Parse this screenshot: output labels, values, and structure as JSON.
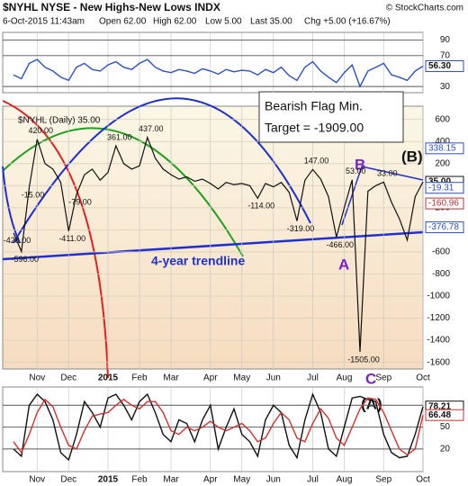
{
  "header": {
    "title": "$NYHL NYSE - New Highs-New Lows INDX",
    "copyright": "© StockCharts.com",
    "date": "6-Oct-2015 11:43am",
    "open": "Open 62.00",
    "high": "High 62.00",
    "low": "Low 5.00",
    "last": "Last 35.00",
    "change": "Chg +5.00 (+16.67%)"
  },
  "chart_data": [
    {
      "type": "line",
      "ylim": [
        22,
        100
      ],
      "yticks": [
        30,
        70,
        90
      ],
      "grid": true,
      "series": [
        {
          "color": "#2a4fc8",
          "values": [
            45,
            40,
            60,
            65,
            55,
            50,
            42,
            38,
            55,
            60,
            52,
            50,
            58,
            62,
            55,
            52,
            60,
            65,
            55,
            50,
            48,
            52,
            50,
            47,
            53,
            50,
            46,
            52,
            49,
            51,
            50,
            45,
            52,
            48,
            55,
            44,
            38,
            55,
            62,
            50,
            42,
            35,
            48,
            58,
            30,
            50,
            55,
            60,
            45,
            42,
            38,
            50,
            56.3
          ],
          "value_labels": [
            null,
            null,
            null,
            null,
            null,
            null,
            null,
            null,
            null,
            null,
            null,
            null,
            null,
            null,
            null,
            null,
            null,
            null,
            null,
            null,
            null,
            null,
            null,
            null,
            null,
            null,
            null,
            null,
            null,
            null,
            null,
            null,
            null,
            null,
            null,
            null,
            null,
            null,
            null,
            null,
            null,
            null,
            null,
            null,
            null,
            null,
            null,
            null,
            null,
            null,
            null,
            null,
            "56.30"
          ]
        }
      ]
    },
    {
      "type": "line",
      "ylim": [
        -1660,
        720
      ],
      "yticks": [
        600,
        400,
        200,
        0,
        -200,
        -400,
        -600,
        -800,
        -1000,
        -1200,
        -1400,
        -1600
      ],
      "grid": true,
      "categories": [
        null,
        null,
        null,
        "Nov",
        null,
        null,
        null,
        "Dec",
        null,
        null,
        null,
        null,
        "2015",
        null,
        null,
        null,
        "Feb",
        null,
        null,
        null,
        "Mar",
        null,
        null,
        null,
        null,
        "Apr",
        null,
        null,
        null,
        "May",
        null,
        null,
        null,
        "Jun",
        null,
        null,
        null,
        null,
        "Jul",
        null,
        null,
        null,
        "Aug",
        null,
        null,
        null,
        null,
        "Sep",
        null,
        null,
        null,
        null,
        "Oct"
      ],
      "series": [
        {
          "name": "$NYHL (Daily) 35.00",
          "color": "#111111",
          "values": [
            -428,
            -596,
            -15,
            420,
            200,
            150,
            30,
            -411,
            -79,
            100,
            150,
            50,
            120,
            361,
            200,
            150,
            180,
            437,
            250,
            150,
            100,
            60,
            80,
            40,
            60,
            20,
            -30,
            30,
            10,
            20,
            0,
            -114,
            20,
            -10,
            30,
            -60,
            -319,
            50,
            147,
            60,
            -100,
            -466,
            -200,
            53,
            -1505,
            -50,
            0,
            33,
            -150,
            -300,
            -492,
            -100,
            35
          ],
          "value_labels": [
            "-428.00",
            "-596.00",
            "-15.00",
            "420.00",
            null,
            null,
            null,
            "-411.00",
            "-79.00",
            null,
            null,
            null,
            null,
            "361.00",
            null,
            null,
            null,
            "437.00",
            null,
            null,
            null,
            null,
            null,
            null,
            null,
            null,
            null,
            null,
            null,
            null,
            null,
            "-114.00",
            null,
            null,
            null,
            null,
            "-319.00",
            null,
            "147.00",
            null,
            null,
            "-466.00",
            null,
            "53.00",
            "-1505.00",
            null,
            null,
            "33.00",
            null,
            null,
            null,
            null,
            "35.00"
          ]
        }
      ],
      "indicator_values": [
        338.15,
        -19.31,
        -160.96,
        -376.78
      ],
      "indicator_colors": [
        "#2a4fc8",
        "#2a4fc8",
        "#c03030",
        "#2a4fc8"
      ],
      "annotations": {
        "flag_title": "Bearish Flag Min.",
        "flag_target": "Target = -1909.00",
        "trendline": "4-year trendline",
        "wave_a": "A",
        "wave_b": "B",
        "wave_c": "C",
        "wave_pa": "(A)",
        "wave_pb": "(B)"
      }
    },
    {
      "type": "line",
      "ylim": [
        -11,
        105
      ],
      "yticks": [
        20,
        50,
        80
      ],
      "grid": true,
      "series": [
        {
          "color": "#111111",
          "values": [
            20,
            10,
            80,
            95,
            85,
            60,
            15,
            5,
            40,
            85,
            70,
            50,
            90,
            95,
            80,
            60,
            85,
            95,
            70,
            40,
            30,
            60,
            55,
            30,
            60,
            80,
            20,
            50,
            75,
            40,
            30,
            10,
            60,
            80,
            70,
            25,
            8,
            60,
            95,
            70,
            20,
            10,
            50,
            90,
            92,
            88,
            85,
            40,
            15,
            8,
            10,
            40,
            78.21
          ]
        },
        {
          "color": "#d03030",
          "values": [
            30,
            15,
            40,
            70,
            88,
            78,
            50,
            25,
            20,
            45,
            65,
            68,
            70,
            80,
            88,
            80,
            75,
            85,
            85,
            70,
            45,
            40,
            50,
            45,
            50,
            58,
            50,
            45,
            50,
            55,
            45,
            30,
            35,
            55,
            70,
            60,
            35,
            30,
            55,
            75,
            62,
            35,
            25,
            50,
            75,
            90,
            88,
            70,
            45,
            20,
            12,
            20,
            66.48
          ]
        }
      ]
    }
  ]
}
